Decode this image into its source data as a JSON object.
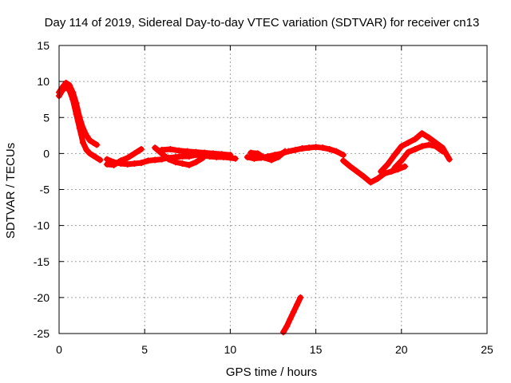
{
  "chart_data": {
    "type": "scatter",
    "title": "Day 114 of 2019, Sidereal Day-to-day VTEC variation (SDTVAR) for receiver cn13",
    "xlabel": "GPS time / hours",
    "ylabel": "SDTVAR / TECUs",
    "xlim": [
      0,
      25
    ],
    "ylim": [
      -25,
      15
    ],
    "xticks": [
      0,
      5,
      10,
      15,
      20,
      25
    ],
    "yticks": [
      15,
      10,
      5,
      0,
      -5,
      -10,
      -15,
      -20,
      -25
    ],
    "grid": true,
    "series": [
      {
        "name": "SDTVAR",
        "color": "#ff0000",
        "marker": "plus",
        "tracks": [
          {
            "x": [
              0.0,
              0.2,
              0.4,
              0.6,
              0.8,
              1.0,
              1.2,
              1.4,
              1.6,
              1.8,
              2.0,
              2.2
            ],
            "y": [
              8.5,
              9.2,
              9.8,
              9.5,
              8.5,
              7.0,
              5.0,
              3.5,
              2.5,
              1.8,
              1.5,
              1.2
            ]
          },
          {
            "x": [
              0.0,
              0.2,
              0.4,
              0.6,
              0.8,
              1.0,
              1.2,
              1.4,
              1.6,
              1.8,
              2.0,
              2.2,
              2.4
            ],
            "y": [
              8.0,
              8.8,
              9.2,
              8.8,
              7.5,
              5.5,
              3.5,
              1.5,
              0.5,
              0.0,
              -0.3,
              -0.6,
              -0.9
            ]
          },
          {
            "x": [
              2.8,
              3.2,
              3.6,
              4.0,
              4.4,
              4.8,
              5.2,
              5.6,
              6.0,
              6.4,
              6.8,
              7.2,
              7.6,
              8.0,
              8.4,
              8.8,
              9.2,
              9.6,
              10.0,
              10.3
            ],
            "y": [
              -0.8,
              -1.2,
              -1.4,
              -1.5,
              -1.4,
              -1.3,
              -1.0,
              -0.9,
              -0.8,
              -0.6,
              -0.5,
              -0.4,
              -0.4,
              -0.2,
              -0.3,
              -0.4,
              -0.5,
              -0.5,
              -0.6,
              -0.7
            ]
          },
          {
            "x": [
              2.8,
              3.2,
              3.6,
              4.0,
              4.4,
              4.8
            ],
            "y": [
              -1.5,
              -1.6,
              -1.0,
              -0.6,
              0.0,
              0.6
            ]
          },
          {
            "x": [
              5.6,
              6.0,
              6.4,
              6.8,
              7.2,
              7.6,
              8.0,
              8.4
            ],
            "y": [
              0.8,
              0.0,
              -0.8,
              -1.2,
              -1.4,
              -1.6,
              -1.2,
              -0.6
            ]
          },
          {
            "x": [
              6.0,
              6.5,
              7.0,
              7.5,
              8.0,
              8.5,
              9.0,
              9.5,
              10.0
            ],
            "y": [
              0.5,
              0.6,
              0.4,
              0.3,
              0.2,
              0.1,
              0.0,
              -0.1,
              -0.2
            ]
          },
          {
            "x": [
              11.0,
              11.4,
              11.8,
              12.2,
              12.6,
              13.0,
              13.4,
              13.8,
              14.2,
              14.6,
              15.0,
              15.4,
              15.8,
              16.2,
              16.6
            ],
            "y": [
              -0.5,
              -0.7,
              -0.6,
              -0.4,
              -0.2,
              0.0,
              0.3,
              0.5,
              0.7,
              0.8,
              0.9,
              0.8,
              0.6,
              0.3,
              -0.2
            ]
          },
          {
            "x": [
              11.2,
              11.6,
              12.0,
              12.4,
              12.8,
              13.2
            ],
            "y": [
              0.1,
              0.0,
              -0.6,
              -0.9,
              -0.5,
              0.3
            ]
          },
          {
            "x": [
              16.6,
              17.0,
              17.4,
              17.8,
              18.2,
              18.6,
              19.0,
              19.4,
              19.8,
              20.2
            ],
            "y": [
              -1.0,
              -1.8,
              -2.5,
              -3.2,
              -4.0,
              -3.5,
              -2.8,
              -2.5,
              -2.2,
              -1.8
            ]
          },
          {
            "x": [
              18.8,
              19.2,
              19.6,
              20.0,
              20.4,
              20.8,
              21.2,
              21.6,
              22.0,
              22.4,
              22.8
            ],
            "y": [
              -2.5,
              -1.5,
              -0.2,
              1.0,
              1.5,
              2.0,
              2.8,
              2.2,
              1.5,
              0.8,
              -0.8
            ]
          },
          {
            "x": [
              19.6,
              20.0,
              20.4,
              20.8,
              21.2,
              21.6,
              22.0,
              22.4
            ],
            "y": [
              -2.0,
              -1.0,
              0.2,
              0.6,
              1.0,
              1.2,
              1.0,
              0.3
            ]
          },
          {
            "x": [
              13.1,
              13.3,
              13.5,
              13.7,
              13.9,
              14.1
            ],
            "y": [
              -24.8,
              -24.0,
              -23.0,
              -22.0,
              -21.0,
              -20.0
            ]
          }
        ]
      }
    ]
  }
}
